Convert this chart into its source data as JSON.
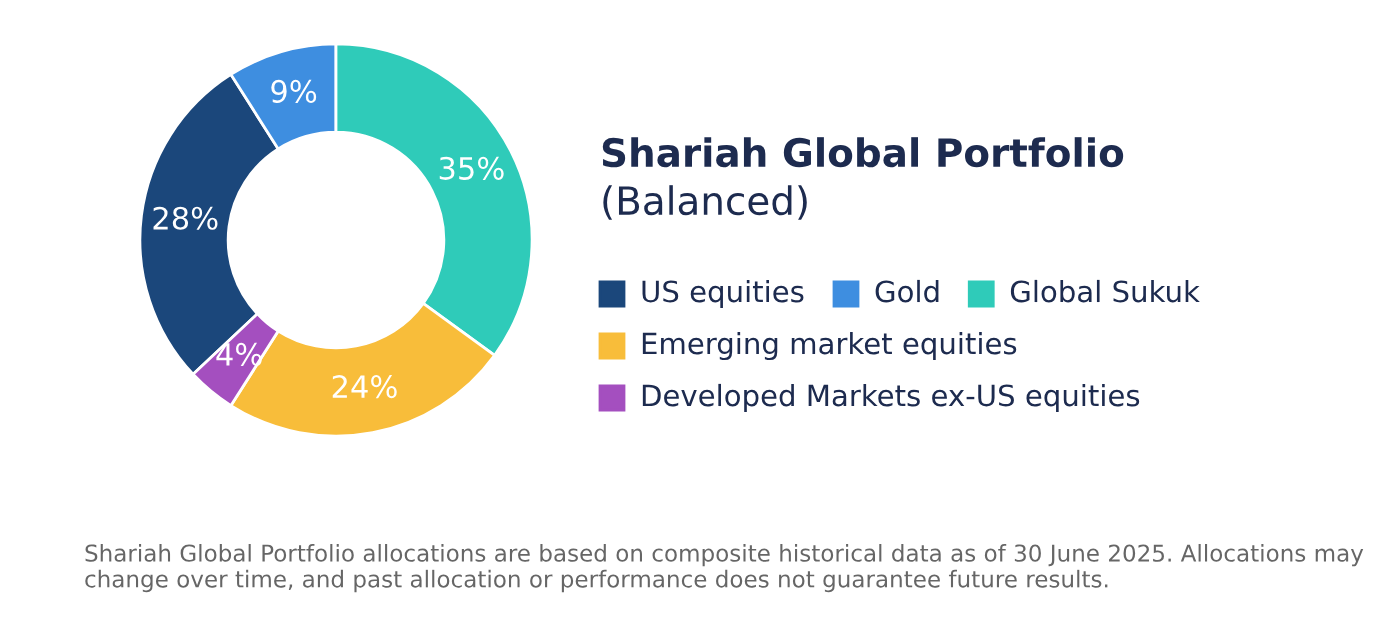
{
  "chart_data": {
    "type": "donut",
    "title": "Shariah Global Portfolio",
    "subtitle": "(Balanced)",
    "categories": [
      "US equities",
      "Gold",
      "Global Sukuk",
      "Emerging market equities",
      "Developed Markets ex-US equities"
    ],
    "values": [
      28,
      9,
      35,
      24,
      4
    ],
    "value_labels": [
      "28%",
      "9%",
      "35%",
      "24%",
      "4%"
    ],
    "colors": [
      "#1b477b",
      "#3e8ee0",
      "#2fcbb9",
      "#f8bd3a",
      "#a44fbf"
    ],
    "legend": "right",
    "annotations": [
      "Shariah Global Portfolio allocations are based on composite historical data as of 30 June 2025. Allocations may change over time, and past allocation or performance does not guarantee future results."
    ]
  }
}
